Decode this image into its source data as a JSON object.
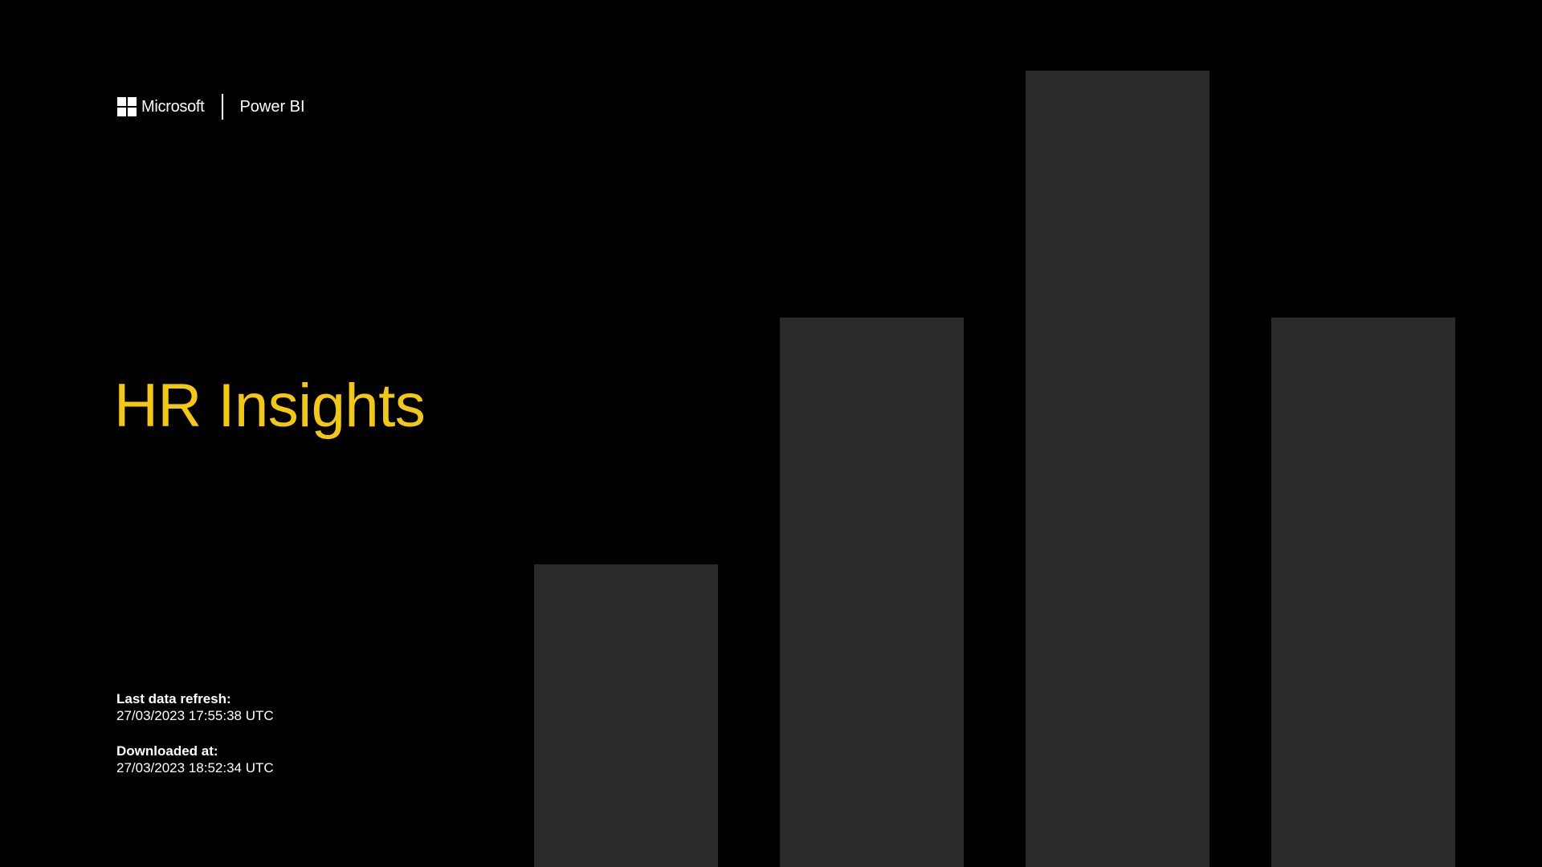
{
  "brand": {
    "company": "Microsoft",
    "product": "Power BI",
    "logo_icon": "microsoft-windows-logo-icon"
  },
  "report": {
    "title": "HR Insights"
  },
  "meta": {
    "refresh_label": "Last data refresh:",
    "refresh_value": "27/03/2023 17:55:38 UTC",
    "download_label": "Downloaded at:",
    "download_value": "27/03/2023 18:52:34 UTC"
  },
  "colors": {
    "background": "#000000",
    "accent": "#F2C811",
    "bar": "#2B2B2B",
    "text": "#FFFFFF"
  },
  "decor_bars": {
    "values": [
      0.38,
      0.69,
      1.0,
      0.69
    ]
  }
}
